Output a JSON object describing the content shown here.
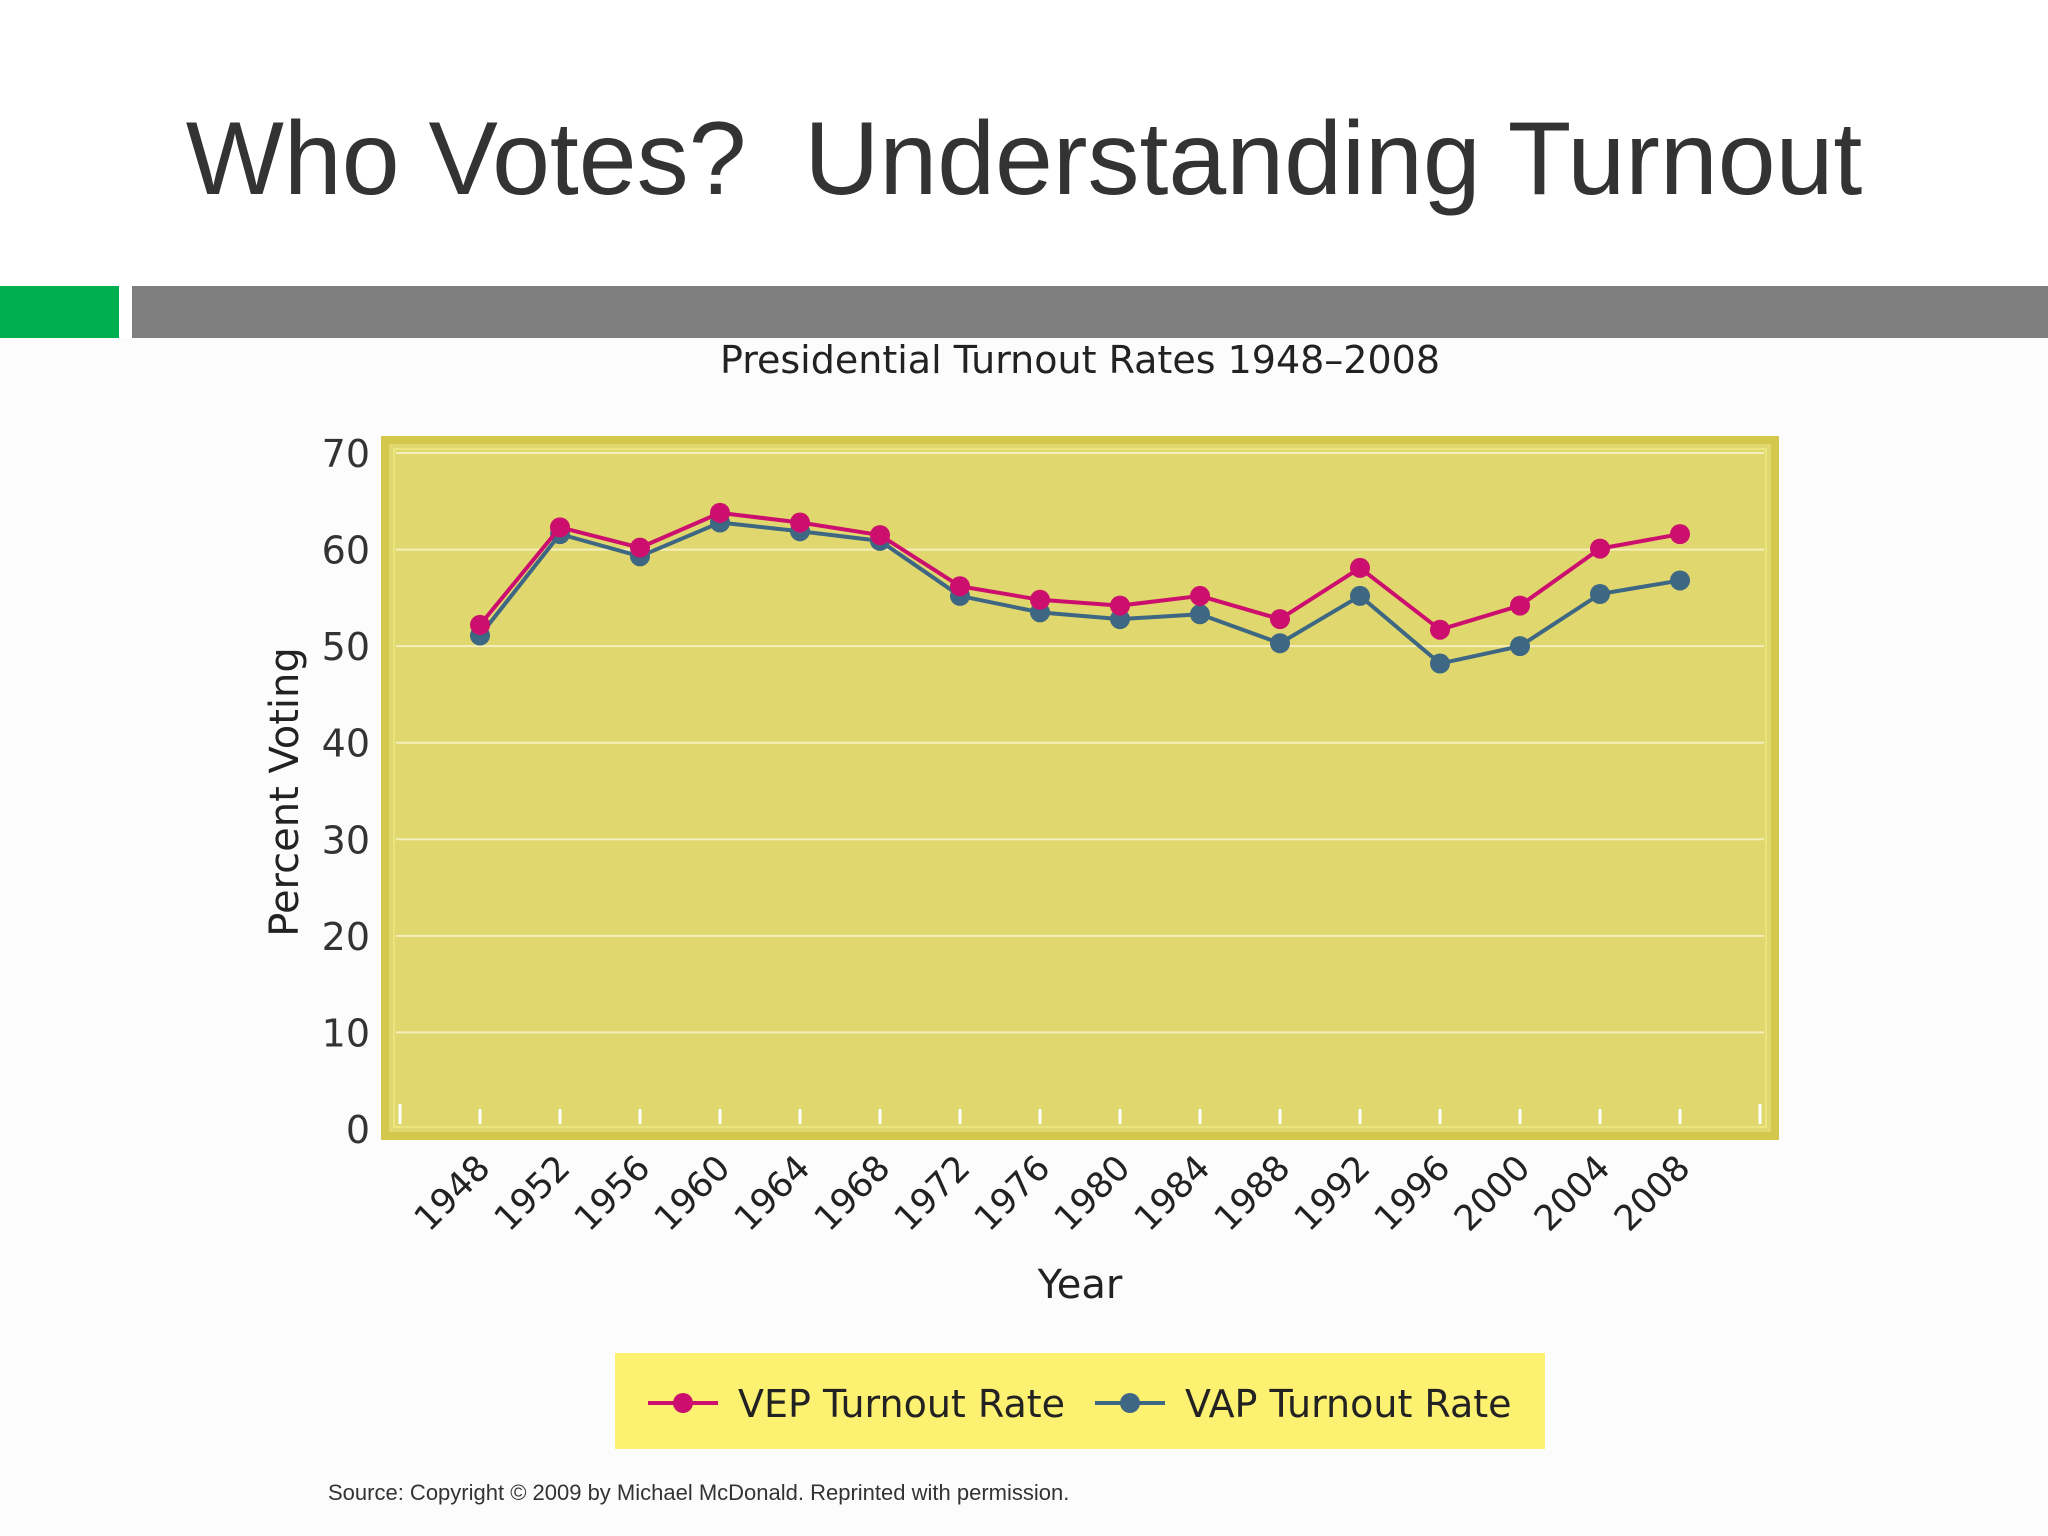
{
  "slide": {
    "title": "Who Votes?  Understanding Turnout",
    "source": "Source: Copyright © 2009 by Michael McDonald. Reprinted with permission."
  },
  "colors": {
    "accent_green": "#00b050",
    "accent_gray": "#7f7f7f",
    "plot_background": "#e0d76e",
    "legend_background": "#fdf171",
    "vep": "#cc0f6e",
    "vap": "#3d6783"
  },
  "chart_data": {
    "type": "line",
    "title": "Presidential Turnout Rates 1948–2008",
    "xlabel": "Year",
    "ylabel": "Percent Voting",
    "categories": [
      "1948",
      "1952",
      "1956",
      "1960",
      "1964",
      "1968",
      "1972",
      "1976",
      "1980",
      "1984",
      "1988",
      "1992",
      "1996",
      "2000",
      "2004",
      "2008"
    ],
    "yticks": [
      0,
      10,
      20,
      30,
      40,
      50,
      60,
      70
    ],
    "ylim": [
      0,
      70
    ],
    "grid": true,
    "legend_position": "bottom",
    "series": [
      {
        "name": "VEP Turnout Rate",
        "color": "#cc0f6e",
        "values": [
          52.2,
          62.3,
          60.2,
          63.8,
          62.8,
          61.5,
          56.2,
          54.8,
          54.2,
          55.2,
          52.8,
          58.1,
          51.7,
          54.2,
          60.1,
          61.6
        ]
      },
      {
        "name": "VAP Turnout Rate",
        "color": "#3d6783",
        "values": [
          51.1,
          61.6,
          59.3,
          62.8,
          61.9,
          60.9,
          55.2,
          53.5,
          52.8,
          53.3,
          50.3,
          55.2,
          48.2,
          50.0,
          55.4,
          56.8
        ]
      }
    ]
  }
}
